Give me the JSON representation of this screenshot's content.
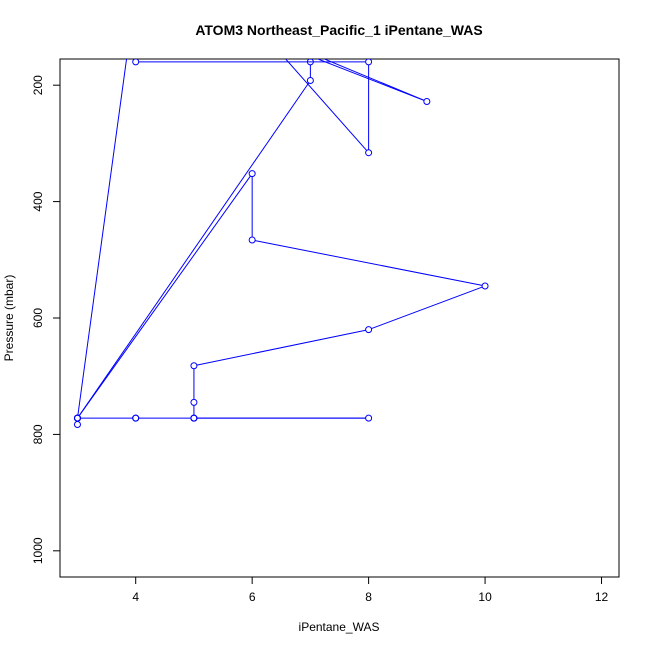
{
  "chart_data": {
    "type": "line",
    "title": "ATOM3 Northeast_Pacific_1 iPentane_WAS",
    "xlabel": "iPentane_WAS",
    "ylabel": "Pressure (mbar)",
    "xlim": [
      2.7,
      12.3
    ],
    "ylim": [
      1045,
      155
    ],
    "y_reversed": true,
    "x_ticks": [
      4,
      6,
      8,
      10,
      12
    ],
    "y_ticks": [
      200,
      400,
      600,
      800,
      1000
    ],
    "grid": false,
    "color": "#0000ff",
    "series": [
      {
        "x": [
          3,
          3,
          3,
          4,
          4,
          5,
          5,
          8,
          5,
          5,
          5,
          8,
          10,
          6,
          6,
          3,
          7,
          7,
          7,
          9,
          7,
          6,
          8,
          8,
          4,
          4,
          3
        ],
        "y": [
          783,
          772,
          772,
          772,
          772,
          772,
          772,
          772,
          772,
          745,
          682,
          620,
          545,
          466,
          352,
          772,
          192,
          160,
          145,
          228,
          150,
          90,
          316,
          160,
          160,
          40,
          772
        ]
      }
    ]
  }
}
